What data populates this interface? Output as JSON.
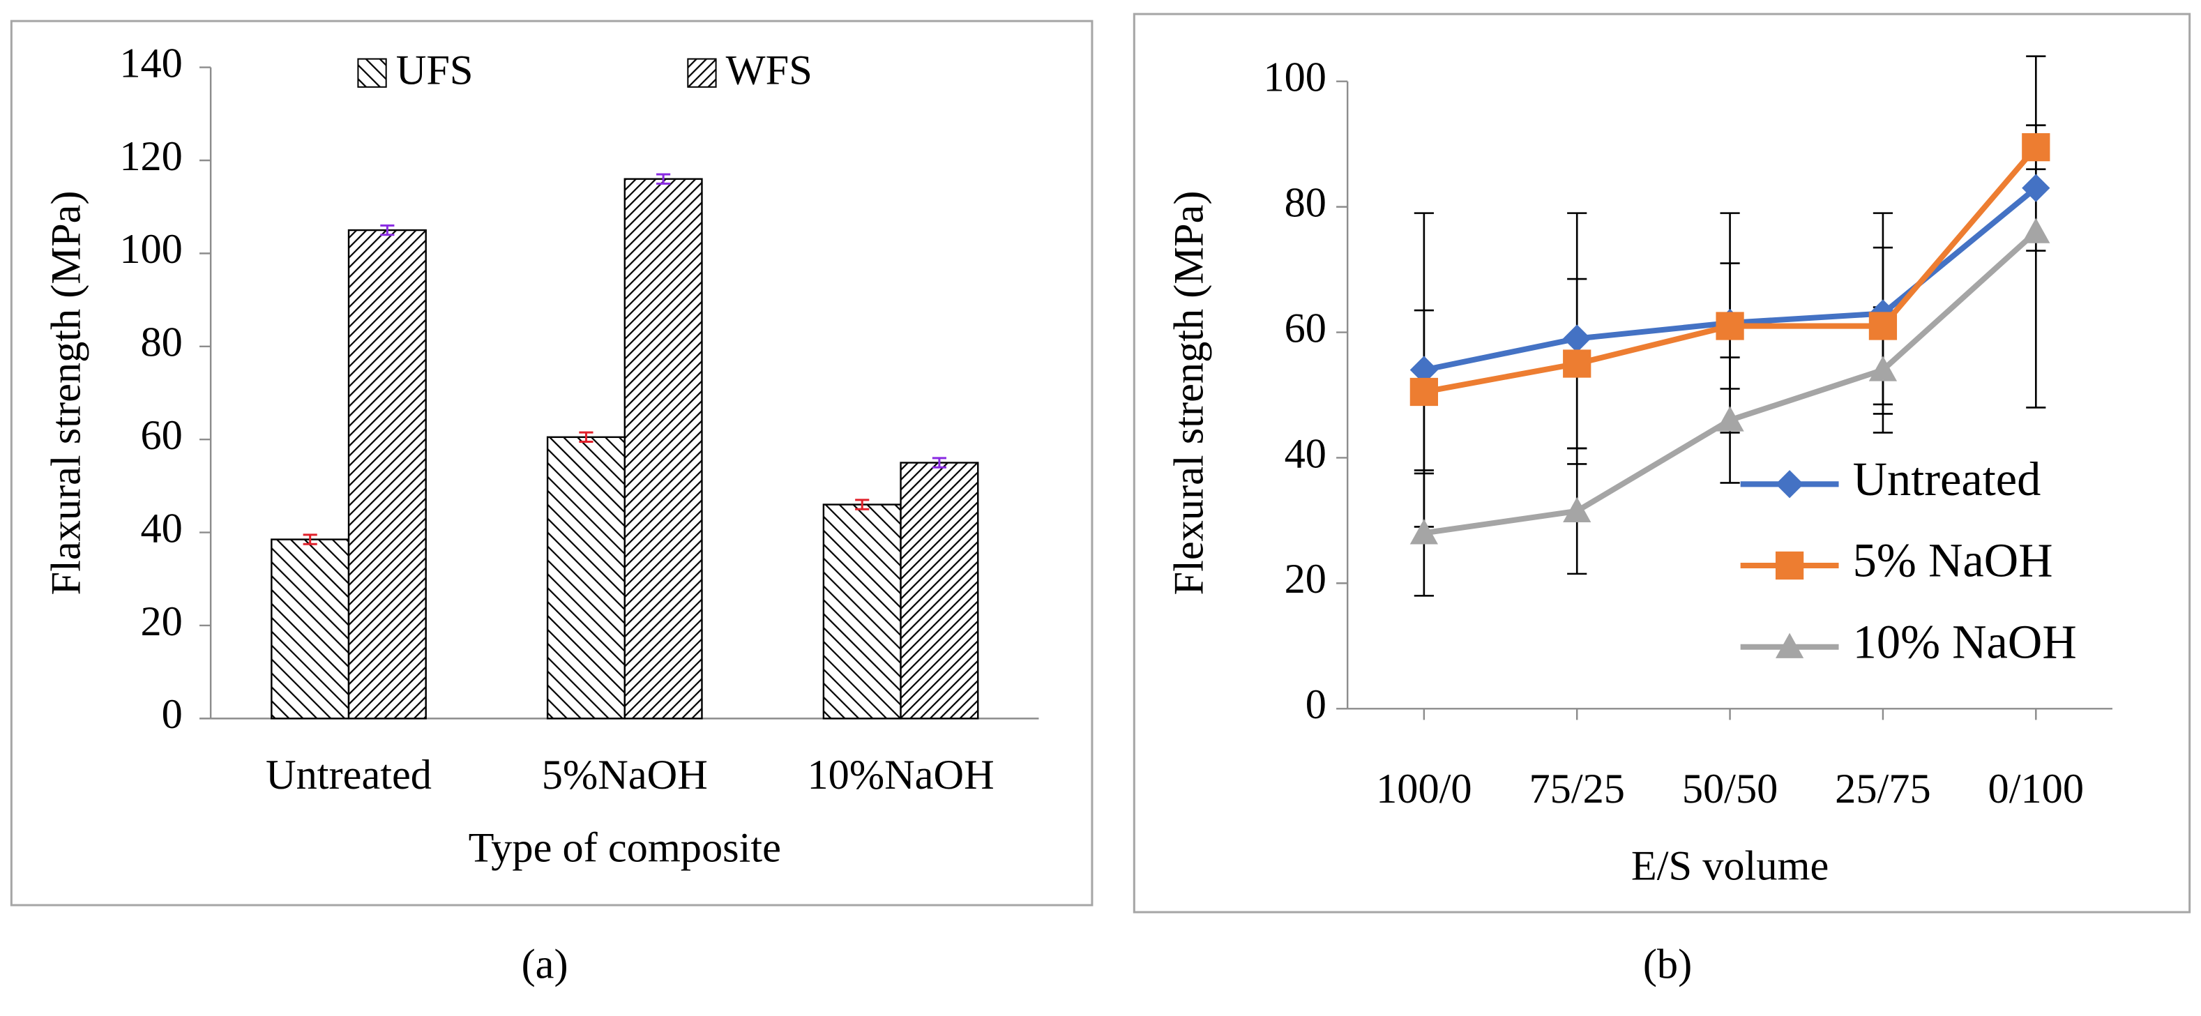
{
  "chart_data": [
    {
      "type": "bar",
      "panel_label": "(a)",
      "xlabel": "Type of composite",
      "ylabel": "Flaxural strength (MPa)",
      "categories": [
        "Untreated",
        "5%NaOH",
        "10%NaOH"
      ],
      "series": [
        {
          "name": "UFS",
          "color": "#000000",
          "hatch_angle": -45,
          "hatch_gap": 7,
          "error_color": "#e0202a",
          "values": [
            38.5,
            60.5,
            46
          ],
          "errors": [
            1,
            1,
            1
          ]
        },
        {
          "name": "WFS",
          "color": "#000000",
          "hatch_angle": 45,
          "hatch_gap": 5,
          "error_color": "#8a2be2",
          "values": [
            105,
            116,
            55
          ],
          "errors": [
            1,
            1,
            1
          ]
        }
      ],
      "ylim": [
        0,
        140
      ],
      "yticks": [
        0,
        20,
        40,
        60,
        80,
        100,
        120,
        140
      ],
      "legend": "top"
    },
    {
      "type": "line",
      "panel_label": "(b)",
      "xlabel": "E/S volume",
      "ylabel": "Flexural strength (MPa)",
      "categories": [
        "100/0",
        "75/25",
        "50/50",
        "25/75",
        "0/100"
      ],
      "series": [
        {
          "name": "Untreated",
          "color": "#4472c4",
          "marker": "diamond",
          "values": [
            54,
            59,
            61.5,
            63,
            83
          ],
          "errors": [
            25,
            20,
            17.5,
            16,
            10
          ]
        },
        {
          "name": "5% NaOH",
          "color": "#ed7d31",
          "marker": "square",
          "values": [
            50.5,
            55,
            61,
            61,
            89.5
          ],
          "errors": [
            13,
            13.5,
            10,
            12.5,
            3.5
          ]
        },
        {
          "name": "10% NaOH",
          "color": "#a5a5a5",
          "marker": "triangle",
          "values": [
            28,
            31.5,
            46,
            54,
            76
          ],
          "errors": [
            10,
            10,
            10,
            10,
            28
          ]
        }
      ],
      "error_color": "#000000",
      "ylim": [
        0,
        100
      ],
      "yticks": [
        0,
        20,
        40,
        60,
        80,
        100
      ],
      "legend": "right"
    }
  ]
}
